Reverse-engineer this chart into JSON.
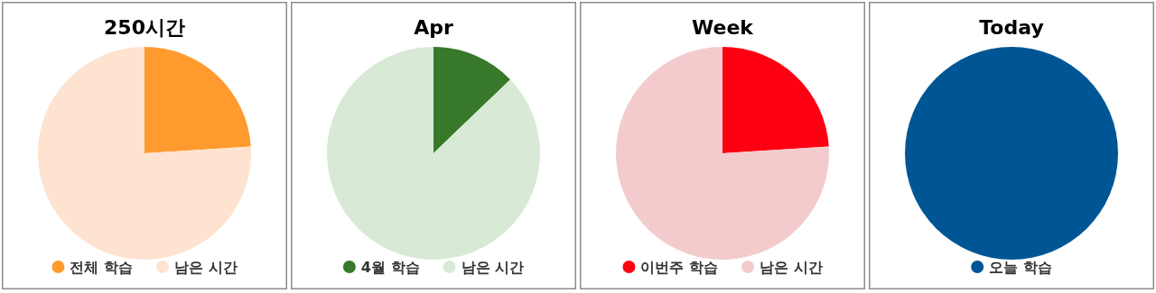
{
  "chart_data": [
    {
      "type": "pie",
      "title": "250시간",
      "categories": [
        "전체 학습",
        "남은 시간"
      ],
      "values": [
        24,
        76
      ],
      "colors": [
        "#ff9a2e",
        "#fde3d0"
      ],
      "legend": "bottom"
    },
    {
      "type": "pie",
      "title": "Apr",
      "categories": [
        "4월 학습",
        "남은 시간"
      ],
      "values": [
        12.8,
        87.2
      ],
      "colors": [
        "#38782a",
        "#d8ead5"
      ],
      "legend": "bottom"
    },
    {
      "type": "pie",
      "title": "Week",
      "categories": [
        "이번주 학습",
        "남은 시간"
      ],
      "values": [
        24,
        76
      ],
      "colors": [
        "#ff0013",
        "#f4cbcc"
      ],
      "legend": "bottom"
    },
    {
      "type": "pie",
      "title": "Today",
      "categories": [
        "오늘 학습"
      ],
      "values": [
        100
      ],
      "colors": [
        "#005694"
      ],
      "legend": "bottom"
    }
  ]
}
